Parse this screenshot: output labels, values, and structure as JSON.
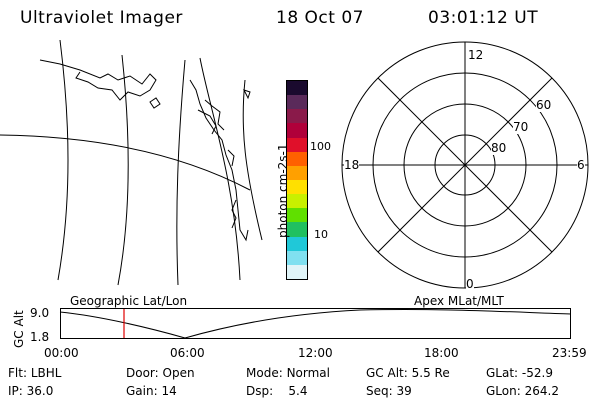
{
  "header": {
    "title": "Ultraviolet Imager",
    "date": "18 Oct 07",
    "time": "03:01:12 UT"
  },
  "colorbar": {
    "unit_label": "photon cm-2s-1",
    "ticks": [
      "100",
      "10"
    ],
    "colors": [
      "#1a0a2e",
      "#5a2a5a",
      "#8a1a4a",
      "#b0003a",
      "#e0102a",
      "#ff6000",
      "#ffa000",
      "#ffe000",
      "#c8f000",
      "#60e000",
      "#20c060",
      "#20c8d8",
      "#80e0f0",
      "#e0f4f8"
    ]
  },
  "polar": {
    "labels": {
      "top": "12",
      "right": "6",
      "bottom": "0",
      "left": "18"
    },
    "ring_labels": [
      "60",
      "70",
      "80"
    ]
  },
  "altitude": {
    "left_label": "Geographic Lat/Lon",
    "right_label": "Apex MLat/MLT",
    "axis_title": "GC Alt",
    "y_ticks": [
      "9.0",
      "1.8"
    ],
    "x_ticks": [
      "00:00",
      "06:00",
      "12:00",
      "18:00",
      "23:59"
    ],
    "marker_color": "#e00000"
  },
  "footer": {
    "rows": [
      [
        {
          "label": "Flt:",
          "value": "LBHL"
        },
        {
          "label": "Door:",
          "value": "Open"
        },
        {
          "label": "Mode:",
          "value": "Normal"
        },
        {
          "label": "GC Alt:",
          "value": "5.5 Re"
        },
        {
          "label": "GLat:",
          "value": "-52.9"
        }
      ],
      [
        {
          "label": "IP:",
          "value": "36.0"
        },
        {
          "label": "Gain:",
          "value": "14"
        },
        {
          "label": "Dsp:",
          "value": "5.4"
        },
        {
          "label": "Seq:",
          "value": "39"
        },
        {
          "label": "GLon:",
          "value": "264.2"
        }
      ]
    ]
  }
}
